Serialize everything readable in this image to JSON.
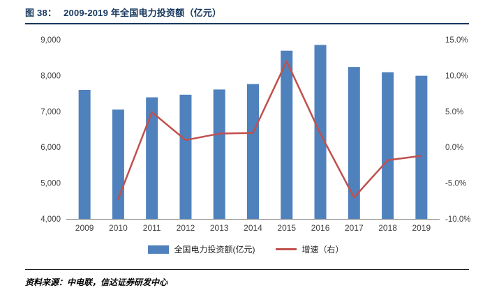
{
  "header": {
    "figure_label": "图 38：",
    "title": "2009-2019 年全国电力投资额（亿元）"
  },
  "chart_data": {
    "type": "bar+line",
    "title": "2009-2019 年全国电力投资额（亿元）",
    "categories": [
      "2009",
      "2010",
      "2011",
      "2012",
      "2013",
      "2014",
      "2015",
      "2016",
      "2017",
      "2018",
      "2019"
    ],
    "series": [
      {
        "name": "全国电力投资额(亿元)",
        "type": "bar",
        "axis": "left",
        "color": "#4F81BD",
        "values": [
          7600,
          7051,
          7393,
          7466,
          7611,
          7764,
          8694,
          8855,
          8239,
          8094,
          7995
        ]
      },
      {
        "name": "增速（右）",
        "type": "line",
        "axis": "right",
        "color": "#C0504D",
        "values": [
          null,
          -7.2,
          4.9,
          1.0,
          1.9,
          2.0,
          12.0,
          1.9,
          -7.0,
          -1.8,
          -1.2
        ]
      }
    ],
    "left_axis": {
      "min": 4000,
      "max": 9000,
      "step": 1000,
      "labels": [
        "4,000",
        "5,000",
        "6,000",
        "7,000",
        "8,000",
        "9,000"
      ]
    },
    "right_axis": {
      "min": -10,
      "max": 15,
      "step": 5,
      "labels": [
        "-10.0%",
        "-5.0%",
        "0.0%",
        "5.0%",
        "10.0%",
        "15.0%"
      ]
    },
    "grid": false,
    "legend_position": "bottom"
  },
  "legend": {
    "items": [
      {
        "label": "全国电力投资额(亿元)",
        "swatch": "bar",
        "color": "#4F81BD"
      },
      {
        "label": "增速（右）",
        "swatch": "line",
        "color": "#C0504D"
      }
    ]
  },
  "footer": {
    "source_text": "资料来源：中电联，信达证券研发中心"
  }
}
